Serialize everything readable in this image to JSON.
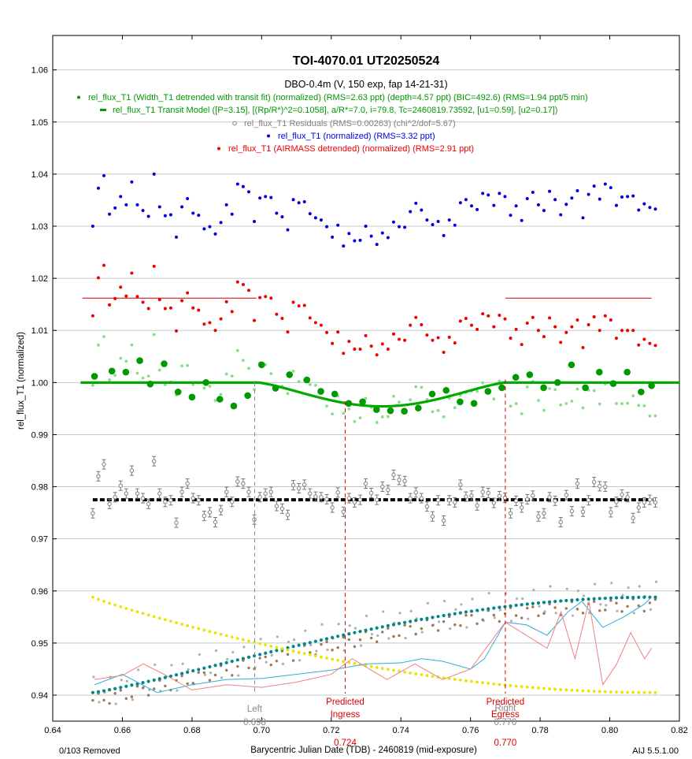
{
  "chart_data": {
    "type": "scatter",
    "title": "TOI-4070.01  UT20250524",
    "subtitle": "DBO-0.4m (V, 150 exp, fap 14-21-31)",
    "xlabel": "Barycentric Julian Date (TDB) - 2460819 (mid-exposure)",
    "ylabel": "rel_flux_T1 (normalized)",
    "xlim": [
      0.64,
      0.82
    ],
    "ylim": [
      0.935,
      1.065
    ],
    "x_ticks": [
      0.64,
      0.66,
      0.68,
      0.7,
      0.72,
      0.74,
      0.76,
      0.78,
      0.8,
      0.82
    ],
    "x_tick_labels": [
      "0.64",
      "0.66",
      "0.68",
      "0.70",
      "0.72",
      "0.74",
      "0.76",
      "0.78",
      "0.80",
      "0.82"
    ],
    "y_ticks": [
      0.94,
      0.95,
      0.96,
      0.97,
      0.98,
      0.99,
      1.0,
      1.01,
      1.02,
      1.03,
      1.04,
      1.05,
      1.06
    ],
    "y_tick_labels": [
      "0.94",
      "0.95",
      "0.96",
      "0.97",
      "0.98",
      "0.99",
      "1.00",
      "1.01",
      "1.02",
      "1.03",
      "1.04",
      "1.05",
      "1.06"
    ],
    "grid": "horizontal",
    "legend_placement": "top-center",
    "colors": {
      "detrended": "#009900",
      "detrended_light": "#88dd88",
      "model": "#00aa00",
      "residuals": "#808080",
      "normalized": "#0000dd",
      "airmass": "#ee0000",
      "markers": "#dd0000",
      "left_marker": "#888888",
      "teal": "#008888",
      "yellow": "#e6e600",
      "brown": "#a07850",
      "cyan_line": "#33aadd",
      "pink_line": "#f08080",
      "silver": "#b0b0b0"
    },
    "legend": [
      {
        "label": "rel_flux_T1 (Width_T1 detrended with transit fit) (normalized) (RMS=2.63 ppt) (depth=4.57 ppt) (BIC=492.6) (RMS=1.94 ppt/5 min)",
        "color": "#009900",
        "marker": "dot"
      },
      {
        "label": "rel_flux_T1 Transit Model ([P=3.15], [(Rp/R*)^2=0.1058], a/R*=7.0, i=79.8, Tc=2460819.73592, [u1=0.59], [u2=0.17])",
        "color": "#009900",
        "marker": "dash"
      },
      {
        "label": "rel_flux_T1 Residuals (RMS=0.00263) (chi^2/dof=5.67)",
        "color": "#808080",
        "marker": "circle"
      },
      {
        "label": "rel_flux_T1 (normalized) (RMS=3.32 ppt)",
        "color": "#0000dd",
        "marker": "dot"
      },
      {
        "label": "rel_flux_T1 (AIRMASS detrended) (normalized) (RMS=2.91 ppt)",
        "color": "#ee0000",
        "marker": "dot"
      }
    ],
    "markers": [
      {
        "name": "Left",
        "x": 0.698,
        "value_label": "0.698",
        "color": "#888888"
      },
      {
        "name": "Predicted Ingress",
        "line1": "Predicted",
        "line2": "Ingress",
        "x": 0.724,
        "value_label": "0.724",
        "color": "#dd0000"
      },
      {
        "name": "Predicted Egress",
        "line1": "Predicted",
        "line2": "Egress",
        "x": 0.77,
        "value_label": "0.770",
        "color": "#dd0000"
      },
      {
        "name": "Right",
        "x": 0.77,
        "value_label": "0.770",
        "color": "#888888"
      }
    ],
    "x_start": 0.6515,
    "x_step": 0.0016,
    "series": [
      {
        "name": "rel_flux_T1 (normalized)",
        "color": "#0000dd",
        "values": [
          1.03,
          1.0373,
          1.0397,
          1.0323,
          1.0335,
          1.0357,
          1.0341,
          1.0385,
          1.0341,
          1.033,
          1.0319,
          1.04,
          1.0337,
          1.032,
          1.0322,
          1.0279,
          1.0337,
          1.0353,
          1.0325,
          1.0321,
          1.0295,
          1.0299,
          1.0285,
          1.0307,
          1.0341,
          1.0323,
          1.0381,
          1.0376,
          1.0366,
          1.0309,
          1.0354,
          1.0357,
          1.0355,
          1.0325,
          1.0318,
          1.0293,
          1.0351,
          1.0345,
          1.0347,
          1.0324,
          1.0316,
          1.0312,
          1.0299,
          1.0279,
          1.0302,
          1.0262,
          1.0286,
          1.0272,
          1.0273,
          1.03,
          1.0281,
          1.0265,
          1.0287,
          1.0278,
          1.0308,
          1.0299,
          1.0298,
          1.0328,
          1.0344,
          1.0331,
          1.0312,
          1.0303,
          1.0309,
          1.0282,
          1.0312,
          1.0302,
          1.0345,
          1.0351,
          1.0339,
          1.0332,
          1.0363,
          1.036,
          1.034,
          1.0363,
          1.0357,
          1.0321,
          1.0339,
          1.0311,
          1.0353,
          1.0365,
          1.0341,
          1.033,
          1.0367,
          1.0351,
          1.0322,
          1.0342,
          1.0354,
          1.0368,
          1.0316,
          1.0361,
          1.0377,
          1.0352,
          1.0381,
          1.0374,
          1.034,
          1.0356,
          1.0357,
          1.0358,
          1.0331,
          1.0343,
          1.0336,
          1.0333
        ]
      },
      {
        "name": "rel_flux_T1 (AIRMASS detrended) (normalized)",
        "color": "#ee0000",
        "values": [
          1.0128,
          1.0201,
          1.0225,
          1.0149,
          1.0161,
          1.0183,
          1.0166,
          1.021,
          1.0165,
          1.0154,
          1.0142,
          1.0223,
          1.0159,
          1.0142,
          1.0143,
          1.0099,
          1.0157,
          1.0172,
          1.0143,
          1.0139,
          1.0112,
          1.0115,
          1.01,
          1.0122,
          1.0155,
          1.0136,
          1.0193,
          1.0188,
          1.0177,
          1.0119,
          1.0163,
          1.0165,
          1.0162,
          1.0131,
          1.0123,
          1.0097,
          1.0154,
          1.0147,
          1.0148,
          1.0124,
          1.0115,
          1.011,
          1.0096,
          1.0075,
          1.0097,
          1.0056,
          1.0079,
          1.0064,
          1.0064,
          1.009,
          1.007,
          1.0053,
          1.0074,
          1.0064,
          1.0093,
          1.0083,
          1.0081,
          1.011,
          1.0125,
          1.0111,
          1.0091,
          1.0081,
          1.0086,
          1.0058,
          1.0087,
          1.0076,
          1.0118,
          1.0123,
          1.011,
          1.0102,
          1.0132,
          1.0128,
          1.0107,
          1.0129,
          1.0122,
          1.0085,
          1.0102,
          1.0073,
          1.0114,
          1.0125,
          1.01,
          1.0088,
          1.0124,
          1.0107,
          1.0077,
          1.0096,
          1.0107,
          1.012,
          1.0067,
          1.0111,
          1.0126,
          1.01,
          1.0128,
          1.012,
          1.0085,
          1.01,
          1.01,
          1.01,
          1.0072,
          1.0083,
          1.0075,
          1.0071
        ]
      },
      {
        "name": "rel_flux_T1 (Width_T1 detrended with transit fit) (normalized)",
        "color": "#009900",
        "binned_x": [
          0.652,
          0.657,
          0.661,
          0.665,
          0.668,
          0.672,
          0.676,
          0.68,
          0.684,
          0.688,
          0.692,
          0.696,
          0.7,
          0.704,
          0.708,
          0.713,
          0.717,
          0.721,
          0.725,
          0.729,
          0.733,
          0.737,
          0.741,
          0.745,
          0.749,
          0.753,
          0.757,
          0.761,
          0.765,
          0.769,
          0.773,
          0.777,
          0.781,
          0.785,
          0.789,
          0.793,
          0.797,
          0.801,
          0.805,
          0.809,
          0.812
        ],
        "binned_values": [
          1.0012,
          1.0022,
          1.002,
          1.0042,
          0.9997,
          1.0036,
          0.9982,
          0.9972,
          1.0,
          0.9968,
          0.9955,
          0.9975,
          1.0034,
          0.9989,
          1.0015,
          1.0005,
          0.9983,
          0.9978,
          0.996,
          0.9963,
          0.9948,
          0.9946,
          0.9945,
          0.9951,
          0.9978,
          0.9985,
          0.9963,
          0.996,
          0.9983,
          0.999,
          1.001,
          1.0015,
          0.999,
          1.0,
          1.0034,
          0.999,
          1.002,
          0.9998,
          1.002,
          0.9982,
          0.9994
        ]
      },
      {
        "name": "rel_flux_T1 Transit Model",
        "color": "#009900",
        "model": {
          "baseline": 1.0,
          "depth": 0.00457,
          "ingress": 0.699,
          "egress": 0.77,
          "mid": 0.73592
        }
      },
      {
        "name": "rel_flux_T1 Residuals",
        "color": "#808080",
        "offset": 0.9775,
        "values": [
          0.9749,
          0.982,
          0.9843,
          0.9767,
          0.978,
          0.9802,
          0.9787,
          0.9831,
          0.9787,
          0.9778,
          0.9767,
          0.9849,
          0.9787,
          0.9771,
          0.9774,
          0.9731,
          0.979,
          0.9806,
          0.9778,
          0.9774,
          0.9744,
          0.9751,
          0.9732,
          0.9755,
          0.979,
          0.9771,
          0.981,
          0.9806,
          0.979,
          0.9737,
          0.978,
          0.9787,
          0.979,
          0.9763,
          0.9758,
          0.9746,
          0.9803,
          0.9797,
          0.9804,
          0.9787,
          0.9781,
          0.978,
          0.9776,
          0.976,
          0.9789,
          0.9752,
          0.9778,
          0.977,
          0.9775,
          0.9806,
          0.9788,
          0.9775,
          0.98,
          0.9794,
          0.9823,
          0.9813,
          0.9811,
          0.9778,
          0.9789,
          0.9778,
          0.9762,
          0.9743,
          0.9774,
          0.9735,
          0.9774,
          0.977,
          0.9804,
          0.9781,
          0.9783,
          0.9764,
          0.979,
          0.9788,
          0.9769,
          0.9782,
          0.9779,
          0.9749,
          0.9773,
          0.976,
          0.9776,
          0.9783,
          0.9743,
          0.9749,
          0.978,
          0.9773,
          0.9732,
          0.9784,
          0.9753,
          0.9806,
          0.9752,
          0.9774,
          0.9809,
          0.9801,
          0.98,
          0.9751,
          0.9771,
          0.9785,
          0.978,
          0.974,
          0.976,
          0.977,
          0.9775,
          0.977
        ]
      },
      {
        "name": "teal",
        "color": "#008888",
        "values_from": 0.9405,
        "values_to": 0.9588
      },
      {
        "name": "yellow",
        "color": "#e6e600",
        "values_from": 0.9588,
        "values_to": 0.9405
      },
      {
        "name": "cyan_line",
        "color": "#33aadd",
        "x": [
          0.652,
          0.66,
          0.67,
          0.68,
          0.69,
          0.7,
          0.71,
          0.72,
          0.73,
          0.74,
          0.746,
          0.752,
          0.76,
          0.764,
          0.77,
          0.776,
          0.782,
          0.788,
          0.792,
          0.798,
          0.804,
          0.81,
          0.812
        ],
        "values": [
          0.942,
          0.944,
          0.9405,
          0.942,
          0.943,
          0.9432,
          0.944,
          0.9448,
          0.946,
          0.9462,
          0.947,
          0.9465,
          0.945,
          0.947,
          0.954,
          0.9535,
          0.9515,
          0.956,
          0.958,
          0.953,
          0.955,
          0.9575,
          0.9588
        ]
      },
      {
        "name": "pink_line",
        "color": "#f08080",
        "x": [
          0.652,
          0.66,
          0.666,
          0.672,
          0.68,
          0.69,
          0.7,
          0.71,
          0.72,
          0.726,
          0.736,
          0.744,
          0.752,
          0.76,
          0.77,
          0.776,
          0.782,
          0.786,
          0.79,
          0.794,
          0.798,
          0.802,
          0.806,
          0.81,
          0.812
        ],
        "values": [
          0.943,
          0.9438,
          0.946,
          0.944,
          0.941,
          0.942,
          0.9415,
          0.9425,
          0.944,
          0.947,
          0.943,
          0.946,
          0.943,
          0.945,
          0.954,
          0.9515,
          0.949,
          0.956,
          0.947,
          0.958,
          0.942,
          0.946,
          0.952,
          0.947,
          0.949
        ]
      }
    ],
    "footer": {
      "removed": "0/103 Removed",
      "version": "AIJ 5.5.1.00"
    }
  }
}
